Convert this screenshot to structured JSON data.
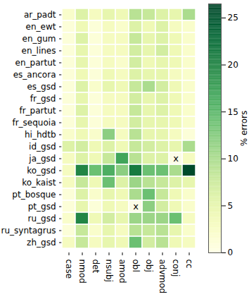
{
  "chart_data": {
    "type": "heatmap",
    "rows": [
      "ar_padt",
      "en_ewt",
      "en_gum",
      "en_lines",
      "en_partut",
      "es_ancora",
      "es_gsd",
      "fr_gsd",
      "fr_partut",
      "fr_sequoia",
      "hi_hdtb",
      "id_gsd",
      "ja_gsd",
      "ko_gsd",
      "ko_kaist",
      "pt_bosque",
      "pt_gsd",
      "ru_gsd",
      "ru_syntagrus",
      "zh_gsd"
    ],
    "columns": [
      "case",
      "nmod",
      "det",
      "nsubj",
      "amod",
      "obl",
      "obj",
      "advmod",
      "conj",
      "cc"
    ],
    "cells": [
      [
        2,
        6,
        3,
        5,
        4,
        9,
        8,
        6,
        5,
        10
      ],
      [
        1,
        4,
        1,
        3,
        2,
        6,
        4,
        6,
        3,
        2
      ],
      [
        1,
        6,
        1,
        3,
        3,
        8,
        5,
        6,
        4,
        2
      ],
      [
        1,
        5,
        1,
        3,
        3,
        7,
        5,
        7,
        4,
        2
      ],
      [
        1,
        5,
        1,
        3,
        2,
        7,
        4,
        5,
        4,
        2
      ],
      [
        1,
        4,
        1,
        4,
        3,
        6,
        5,
        5,
        3,
        2
      ],
      [
        1,
        6,
        2,
        5,
        4,
        8,
        10,
        7,
        4,
        2
      ],
      [
        1,
        5,
        1,
        3,
        3,
        7,
        5,
        6,
        4,
        2
      ],
      [
        1,
        6,
        1,
        3,
        3,
        8,
        5,
        6,
        4,
        2
      ],
      [
        1,
        5,
        1,
        3,
        3,
        7,
        5,
        5,
        4,
        2
      ],
      [
        2,
        4,
        2,
        12,
        3,
        9,
        5,
        5,
        3,
        1
      ],
      [
        6,
        7,
        4,
        6,
        4,
        8,
        7,
        6,
        5,
        10
      ],
      [
        3,
        6,
        4,
        8,
        17,
        9,
        6,
        6,
        null,
        3
      ],
      [
        3,
        20,
        14,
        16,
        12,
        21,
        14,
        14,
        10,
        26
      ],
      [
        3,
        8,
        4,
        14,
        6,
        11,
        9,
        8,
        6,
        5
      ],
      [
        1,
        6,
        2,
        5,
        4,
        10,
        14,
        8,
        4,
        2
      ],
      [
        1,
        5,
        1,
        4,
        3,
        null,
        12,
        7,
        4,
        2
      ],
      [
        2,
        20,
        4,
        7,
        5,
        11,
        11,
        11,
        14,
        3
      ],
      [
        1,
        8,
        2,
        5,
        3,
        9,
        8,
        9,
        5,
        2
      ],
      [
        3,
        8,
        3,
        5,
        4,
        14,
        7,
        9,
        4,
        3
      ]
    ],
    "missing_label": "x",
    "colorbar_label": "% errors",
    "colorbar_lim": [
      0,
      26.5
    ],
    "colorbar_ticks": [
      0,
      5,
      10,
      15,
      20,
      25
    ],
    "color": "YlGn"
  }
}
